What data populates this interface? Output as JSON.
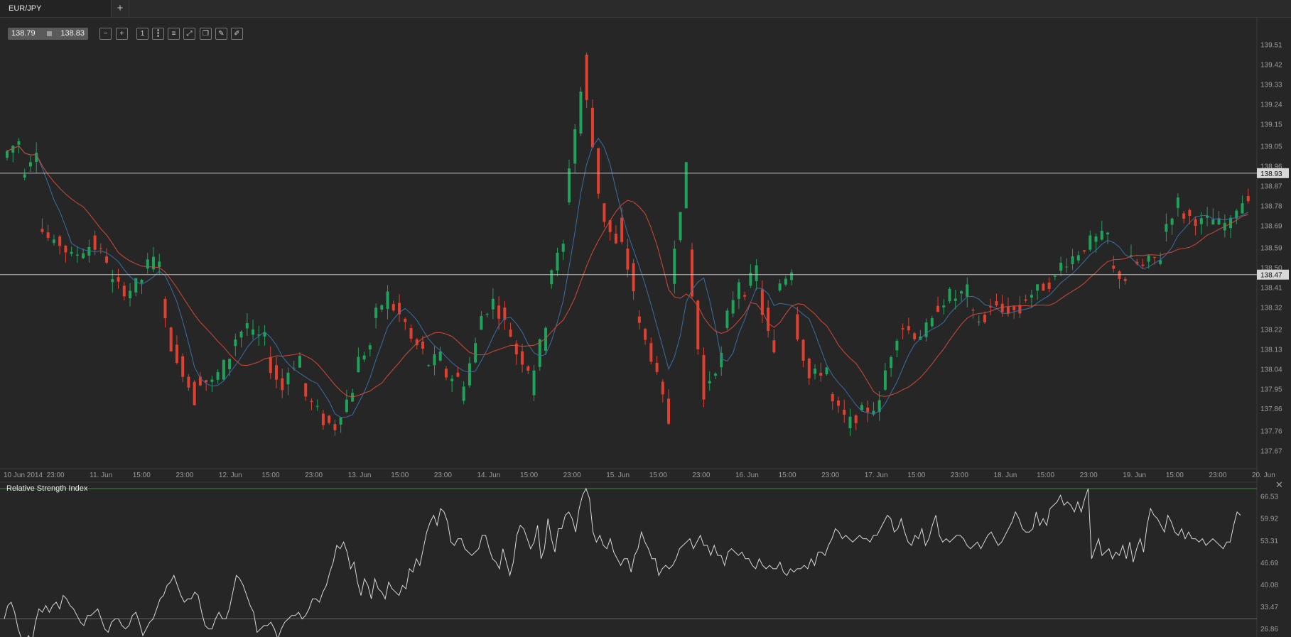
{
  "window": {
    "tab_label": "EUR/JPY",
    "add_tab_label": "+"
  },
  "quote": {
    "bid": "138.79",
    "ask": "138.83"
  },
  "toolbar": {
    "tools": [
      {
        "name": "zoom-out-icon",
        "glyph": "−"
      },
      {
        "name": "zoom-in-icon",
        "glyph": "+"
      },
      {
        "name": "timeframe-icon",
        "glyph": "1"
      },
      {
        "name": "candle-type-icon",
        "glyph": "┇"
      },
      {
        "name": "indicators-icon",
        "glyph": "≡"
      },
      {
        "name": "chart-settings-icon",
        "glyph": "⤢"
      },
      {
        "name": "objects-icon",
        "glyph": "❐"
      },
      {
        "name": "edit-icon",
        "glyph": "✎"
      },
      {
        "name": "draw-icon",
        "glyph": "✐"
      }
    ]
  },
  "colors": {
    "background": "#262626",
    "bull": "#1fa35a",
    "bear": "#e0402f",
    "ma_fast": "#3a6ea5",
    "ma_slow": "#d04a3a",
    "rsi_line": "#d8d8d8",
    "rsi_upper": "#3d8a3d",
    "rsi_lower": "#c0442f"
  },
  "chart_data": [
    {
      "type": "candlestick",
      "symbol": "EUR/JPY",
      "ylim": [
        137.6,
        139.57
      ],
      "y_ticks": [
        "139.51",
        "139.42",
        "139.33",
        "139.24",
        "139.15",
        "139.05",
        "138.96",
        "138.87",
        "138.78",
        "138.69",
        "138.59",
        "138.50",
        "138.41",
        "138.32",
        "138.22",
        "138.13",
        "138.04",
        "137.95",
        "137.86",
        "137.76",
        "137.67"
      ],
      "x_labels": [
        "10 Jun 2014",
        "23:00",
        "11. Jun",
        "15:00",
        "23:00",
        "12. Jun",
        "15:00",
        "23:00",
        "13. Jun",
        "15:00",
        "23:00",
        "14. Jun",
        "15:00",
        "23:00",
        "15. Jun",
        "15:00",
        "23:00",
        "16. Jun",
        "15:00",
        "23:00",
        "17. Jun",
        "15:00",
        "23:00",
        "18. Jun",
        "15:00",
        "23:00",
        "19. Jun",
        "15:00",
        "23:00",
        "20. Jun"
      ],
      "horizontal_lines": [
        {
          "price": 138.93,
          "label": "138.93"
        },
        {
          "price": 138.47,
          "label": "138.47"
        }
      ],
      "series": [
        {
          "name": "",
          "type": "moving-average-fast"
        },
        {
          "name": "",
          "type": "moving-average-slow"
        }
      ],
      "ohlc_trend_points": [
        [
          139.0,
          139.08
        ],
        [
          138.9,
          139.05
        ],
        [
          138.7,
          138.6
        ],
        [
          138.64,
          138.55
        ],
        [
          138.55,
          138.6
        ],
        [
          138.62,
          138.54
        ],
        [
          138.45,
          138.4
        ],
        [
          138.38,
          138.45
        ],
        [
          138.5,
          138.55
        ],
        [
          138.35,
          138.05
        ],
        [
          138.1,
          137.9
        ],
        [
          138.0,
          137.98
        ],
        [
          137.98,
          138.1
        ],
        [
          138.15,
          138.25
        ],
        [
          138.2,
          138.18
        ],
        [
          138.1,
          137.95
        ],
        [
          138.0,
          138.1
        ],
        [
          137.95,
          137.85
        ],
        [
          137.82,
          137.78
        ],
        [
          137.8,
          137.95
        ],
        [
          138.05,
          138.15
        ],
        [
          138.25,
          138.38
        ],
        [
          138.35,
          138.25
        ],
        [
          138.2,
          138.12
        ],
        [
          138.05,
          138.1
        ],
        [
          138.02,
          138.0
        ],
        [
          137.9,
          138.15
        ],
        [
          138.25,
          138.35
        ],
        [
          138.35,
          138.2
        ],
        [
          138.15,
          138.05
        ],
        [
          137.95,
          138.25
        ],
        [
          138.45,
          138.6
        ],
        [
          138.8,
          139.3
        ],
        [
          139.45,
          138.85
        ],
        [
          138.78,
          138.6
        ],
        [
          138.7,
          138.4
        ],
        [
          138.3,
          138.1
        ],
        [
          138.1,
          137.8
        ],
        [
          138.45,
          138.95
        ],
        [
          138.6,
          137.9
        ],
        [
          137.95,
          138.1
        ],
        [
          138.2,
          138.45
        ],
        [
          138.35,
          138.5
        ],
        [
          138.4,
          138.1
        ],
        [
          138.4,
          138.5
        ],
        [
          138.3,
          138.0
        ],
        [
          138.0,
          138.05
        ],
        [
          137.92,
          137.82
        ],
        [
          137.78,
          137.85
        ],
        [
          137.85,
          137.88
        ],
        [
          137.95,
          138.2
        ],
        [
          138.25,
          138.2
        ],
        [
          138.18,
          138.25
        ],
        [
          138.3,
          138.38
        ],
        [
          138.35,
          138.4
        ],
        [
          138.3,
          138.25
        ],
        [
          138.35,
          138.3
        ],
        [
          138.32,
          138.3
        ],
        [
          138.35,
          138.4
        ],
        [
          138.4,
          138.45
        ],
        [
          138.5,
          138.55
        ],
        [
          138.55,
          138.62
        ],
        [
          138.62,
          138.65
        ],
        [
          138.5,
          138.45
        ],
        [
          138.55,
          138.5
        ],
        [
          138.52,
          138.55
        ],
        [
          138.65,
          138.8
        ],
        [
          138.75,
          138.72
        ],
        [
          138.7,
          138.72
        ],
        [
          138.7,
          138.7
        ],
        [
          138.75,
          138.83
        ]
      ]
    },
    {
      "type": "line",
      "title": "Relative Strength Index",
      "ylim": [
        25,
        69
      ],
      "y_ticks": [
        "66.53",
        "59.92",
        "53.31",
        "46.69",
        "40.08",
        "33.47",
        "26.86"
      ],
      "upper_level": 69,
      "lower_level": 30,
      "values": [
        30,
        34,
        35,
        32,
        27,
        24,
        23,
        25,
        23,
        29,
        33,
        32,
        34,
        32,
        34,
        35,
        33,
        37,
        36,
        34,
        33,
        31,
        29,
        28,
        31,
        31,
        32,
        33,
        30,
        27,
        26,
        29,
        30,
        30,
        28,
        27,
        28,
        31,
        32,
        29,
        25,
        27,
        29,
        30,
        33,
        36,
        37,
        40,
        41,
        43,
        40,
        37,
        35,
        36,
        36,
        38,
        37,
        32,
        28,
        27,
        27,
        30,
        32,
        30,
        30,
        33,
        38,
        43,
        42,
        40,
        37,
        34,
        32,
        26,
        27,
        28,
        28,
        29,
        27,
        24,
        27,
        29,
        30,
        31,
        31,
        32,
        30,
        31,
        33,
        36,
        36,
        35,
        38,
        40,
        44,
        47,
        52,
        51,
        53,
        50,
        45,
        47,
        41,
        37,
        42,
        40,
        36,
        42,
        39,
        38,
        36,
        41,
        39,
        38,
        37,
        40,
        39,
        45,
        44,
        48,
        46,
        51,
        56,
        59,
        61,
        58,
        63,
        62,
        59,
        53,
        52,
        54,
        54,
        51,
        50,
        49,
        50,
        51,
        55,
        55,
        51,
        48,
        47,
        45,
        51,
        47,
        43,
        47,
        55,
        58,
        57,
        54,
        51,
        53,
        58,
        48,
        51,
        60,
        54,
        50,
        57,
        57,
        61,
        62,
        60,
        56,
        63,
        67,
        69,
        66,
        56,
        53,
        55,
        52,
        51,
        54,
        50,
        48,
        46,
        48,
        48,
        44,
        49,
        51,
        56,
        53,
        51,
        48,
        48,
        43,
        45,
        46,
        45,
        46,
        48,
        51,
        52,
        53,
        54,
        51,
        53,
        55,
        52,
        52,
        49,
        52,
        49,
        49,
        46,
        50,
        51,
        50,
        49,
        50,
        48,
        48,
        46,
        45,
        48,
        46,
        45,
        46,
        45,
        45,
        47,
        44,
        43,
        45,
        44,
        45,
        45,
        46,
        45,
        48,
        46,
        50,
        50,
        49,
        52,
        54,
        57,
        56,
        54,
        55,
        54,
        53,
        54,
        55,
        54,
        54,
        53,
        55,
        55,
        57,
        59,
        61,
        60,
        56,
        57,
        60,
        56,
        53,
        52,
        55,
        54,
        57,
        52,
        54,
        58,
        61,
        55,
        53,
        54,
        53,
        54,
        55,
        55,
        54,
        52,
        51,
        52,
        53,
        51,
        53,
        55,
        56,
        54,
        52,
        53,
        55,
        57,
        59,
        62,
        60,
        57,
        56,
        56,
        57,
        62,
        58,
        60,
        58,
        63,
        64,
        65,
        67,
        64,
        65,
        64,
        62,
        65,
        62,
        66,
        69,
        48,
        51,
        54,
        49,
        50,
        51,
        48,
        50,
        49,
        52,
        48,
        53,
        47,
        51,
        54,
        50,
        58,
        63,
        61,
        60,
        58,
        56,
        61,
        59,
        56,
        55,
        57,
        54,
        56,
        54,
        54,
        53,
        54,
        52,
        53,
        54,
        53,
        52,
        51,
        53,
        53,
        58,
        62,
        61
      ]
    }
  ]
}
